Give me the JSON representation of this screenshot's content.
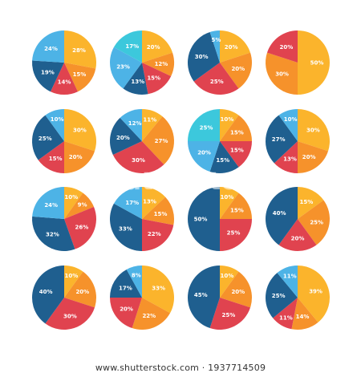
{
  "palette": {
    "dark_blue": "#1f5f8f",
    "light_blue": "#4db3e6",
    "cyan": "#3cc8dc",
    "red": "#e0434f",
    "orange": "#f6922b",
    "yellow": "#fbb42c"
  },
  "watermark": {
    "center_text": "shutterstock",
    "url": "www.shutterstock.com · 1937714509"
  },
  "chart_data": [
    {
      "type": "pie",
      "slices": [
        {
          "label": "28%",
          "value": 28,
          "color": "#fbb42c"
        },
        {
          "label": "15%",
          "value": 15,
          "color": "#f6922b"
        },
        {
          "label": "14%",
          "value": 14,
          "color": "#e0434f"
        },
        {
          "label": "19%",
          "value": 19,
          "color": "#1f5f8f"
        },
        {
          "label": "24%",
          "value": 24,
          "color": "#4db3e6"
        }
      ]
    },
    {
      "type": "pie",
      "slices": [
        {
          "label": "20%",
          "value": 20,
          "color": "#fbb42c"
        },
        {
          "label": "12%",
          "value": 12,
          "color": "#f6922b"
        },
        {
          "label": "15%",
          "value": 15,
          "color": "#e0434f"
        },
        {
          "label": "13%",
          "value": 13,
          "color": "#1f5f8f"
        },
        {
          "label": "23%",
          "value": 23,
          "color": "#4db3e6"
        },
        {
          "label": "17%",
          "value": 17,
          "color": "#3cc8dc"
        }
      ]
    },
    {
      "type": "pie",
      "slices": [
        {
          "label": "20%",
          "value": 20,
          "color": "#fbb42c"
        },
        {
          "label": "20%",
          "value": 20,
          "color": "#f6922b"
        },
        {
          "label": "25%",
          "value": 25,
          "color": "#e0434f"
        },
        {
          "label": "30%",
          "value": 30,
          "color": "#1f5f8f"
        },
        {
          "label": "5%",
          "value": 5,
          "color": "#4db3e6"
        }
      ]
    },
    {
      "type": "pie",
      "slices": [
        {
          "label": "50%",
          "value": 50,
          "color": "#fbb42c"
        },
        {
          "label": "30%",
          "value": 30,
          "color": "#f6922b"
        },
        {
          "label": "20%",
          "value": 20,
          "color": "#e0434f"
        }
      ]
    },
    {
      "type": "pie",
      "slices": [
        {
          "label": "30%",
          "value": 30,
          "color": "#fbb42c"
        },
        {
          "label": "20%",
          "value": 20,
          "color": "#f6922b"
        },
        {
          "label": "15%",
          "value": 15,
          "color": "#e0434f"
        },
        {
          "label": "25%",
          "value": 25,
          "color": "#1f5f8f"
        },
        {
          "label": "10%",
          "value": 10,
          "color": "#4db3e6"
        }
      ]
    },
    {
      "type": "pie",
      "slices": [
        {
          "label": "11%",
          "value": 11,
          "color": "#fbb42c"
        },
        {
          "label": "27%",
          "value": 27,
          "color": "#f6922b"
        },
        {
          "label": "30%",
          "value": 30,
          "color": "#e0434f"
        },
        {
          "label": "20%",
          "value": 20,
          "color": "#1f5f8f"
        },
        {
          "label": "12%",
          "value": 12,
          "color": "#4db3e6"
        }
      ]
    },
    {
      "type": "pie",
      "slices": [
        {
          "label": "10%",
          "value": 10,
          "color": "#fbb42c"
        },
        {
          "label": "15%",
          "value": 15,
          "color": "#f6922b"
        },
        {
          "label": "15%",
          "value": 15,
          "color": "#e0434f"
        },
        {
          "label": "15%",
          "value": 15,
          "color": "#1f5f8f"
        },
        {
          "label": "20%",
          "value": 20,
          "color": "#4db3e6"
        },
        {
          "label": "25%",
          "value": 25,
          "color": "#3cc8dc"
        }
      ]
    },
    {
      "type": "pie",
      "slices": [
        {
          "label": "30%",
          "value": 30,
          "color": "#fbb42c"
        },
        {
          "label": "20%",
          "value": 20,
          "color": "#f6922b"
        },
        {
          "label": "13%",
          "value": 13,
          "color": "#e0434f"
        },
        {
          "label": "27%",
          "value": 27,
          "color": "#1f5f8f"
        },
        {
          "label": "10%",
          "value": 10,
          "color": "#4db3e6"
        }
      ]
    },
    {
      "type": "pie",
      "slices": [
        {
          "label": "10%",
          "value": 10,
          "color": "#fbb42c"
        },
        {
          "label": "9%",
          "value": 9,
          "color": "#f6922b"
        },
        {
          "label": "26%",
          "value": 26,
          "color": "#e0434f"
        },
        {
          "label": "32%",
          "value": 32,
          "color": "#1f5f8f"
        },
        {
          "label": "24%",
          "value": 24,
          "color": "#4db3e6"
        }
      ]
    },
    {
      "type": "pie",
      "slices": [
        {
          "label": "13%",
          "value": 13,
          "color": "#fbb42c"
        },
        {
          "label": "15%",
          "value": 15,
          "color": "#f6922b"
        },
        {
          "label": "22%",
          "value": 22,
          "color": "#e0434f"
        },
        {
          "label": "33%",
          "value": 33,
          "color": "#1f5f8f"
        },
        {
          "label": "17%",
          "value": 17,
          "color": "#4db3e6"
        }
      ]
    },
    {
      "type": "pie",
      "slices": [
        {
          "label": "10%",
          "value": 10,
          "color": "#fbb42c"
        },
        {
          "label": "15%",
          "value": 15,
          "color": "#f6922b"
        },
        {
          "label": "25%",
          "value": 25,
          "color": "#e0434f"
        },
        {
          "label": "50%",
          "value": 50,
          "color": "#1f5f8f"
        }
      ]
    },
    {
      "type": "pie",
      "slices": [
        {
          "label": "15%",
          "value": 15,
          "color": "#fbb42c"
        },
        {
          "label": "25%",
          "value": 25,
          "color": "#f6922b"
        },
        {
          "label": "20%",
          "value": 20,
          "color": "#e0434f"
        },
        {
          "label": "40%",
          "value": 40,
          "color": "#1f5f8f"
        }
      ]
    },
    {
      "type": "pie",
      "slices": [
        {
          "label": "10%",
          "value": 10,
          "color": "#fbb42c"
        },
        {
          "label": "20%",
          "value": 20,
          "color": "#f6922b"
        },
        {
          "label": "30%",
          "value": 30,
          "color": "#e0434f"
        },
        {
          "label": "40%",
          "value": 40,
          "color": "#1f5f8f"
        }
      ]
    },
    {
      "type": "pie",
      "slices": [
        {
          "label": "33%",
          "value": 33,
          "color": "#fbb42c"
        },
        {
          "label": "22%",
          "value": 22,
          "color": "#f6922b"
        },
        {
          "label": "20%",
          "value": 20,
          "color": "#e0434f"
        },
        {
          "label": "17%",
          "value": 17,
          "color": "#1f5f8f"
        },
        {
          "label": "8%",
          "value": 8,
          "color": "#4db3e6"
        }
      ]
    },
    {
      "type": "pie",
      "slices": [
        {
          "label": "10%",
          "value": 10,
          "color": "#fbb42c"
        },
        {
          "label": "20%",
          "value": 20,
          "color": "#f6922b"
        },
        {
          "label": "25%",
          "value": 25,
          "color": "#e0434f"
        },
        {
          "label": "45%",
          "value": 45,
          "color": "#1f5f8f"
        }
      ]
    },
    {
      "type": "pie",
      "slices": [
        {
          "label": "39%",
          "value": 39,
          "color": "#fbb42c"
        },
        {
          "label": "14%",
          "value": 14,
          "color": "#f6922b"
        },
        {
          "label": "11%",
          "value": 11,
          "color": "#e0434f"
        },
        {
          "label": "25%",
          "value": 25,
          "color": "#1f5f8f"
        },
        {
          "label": "11%",
          "value": 11,
          "color": "#4db3e6"
        }
      ]
    }
  ]
}
